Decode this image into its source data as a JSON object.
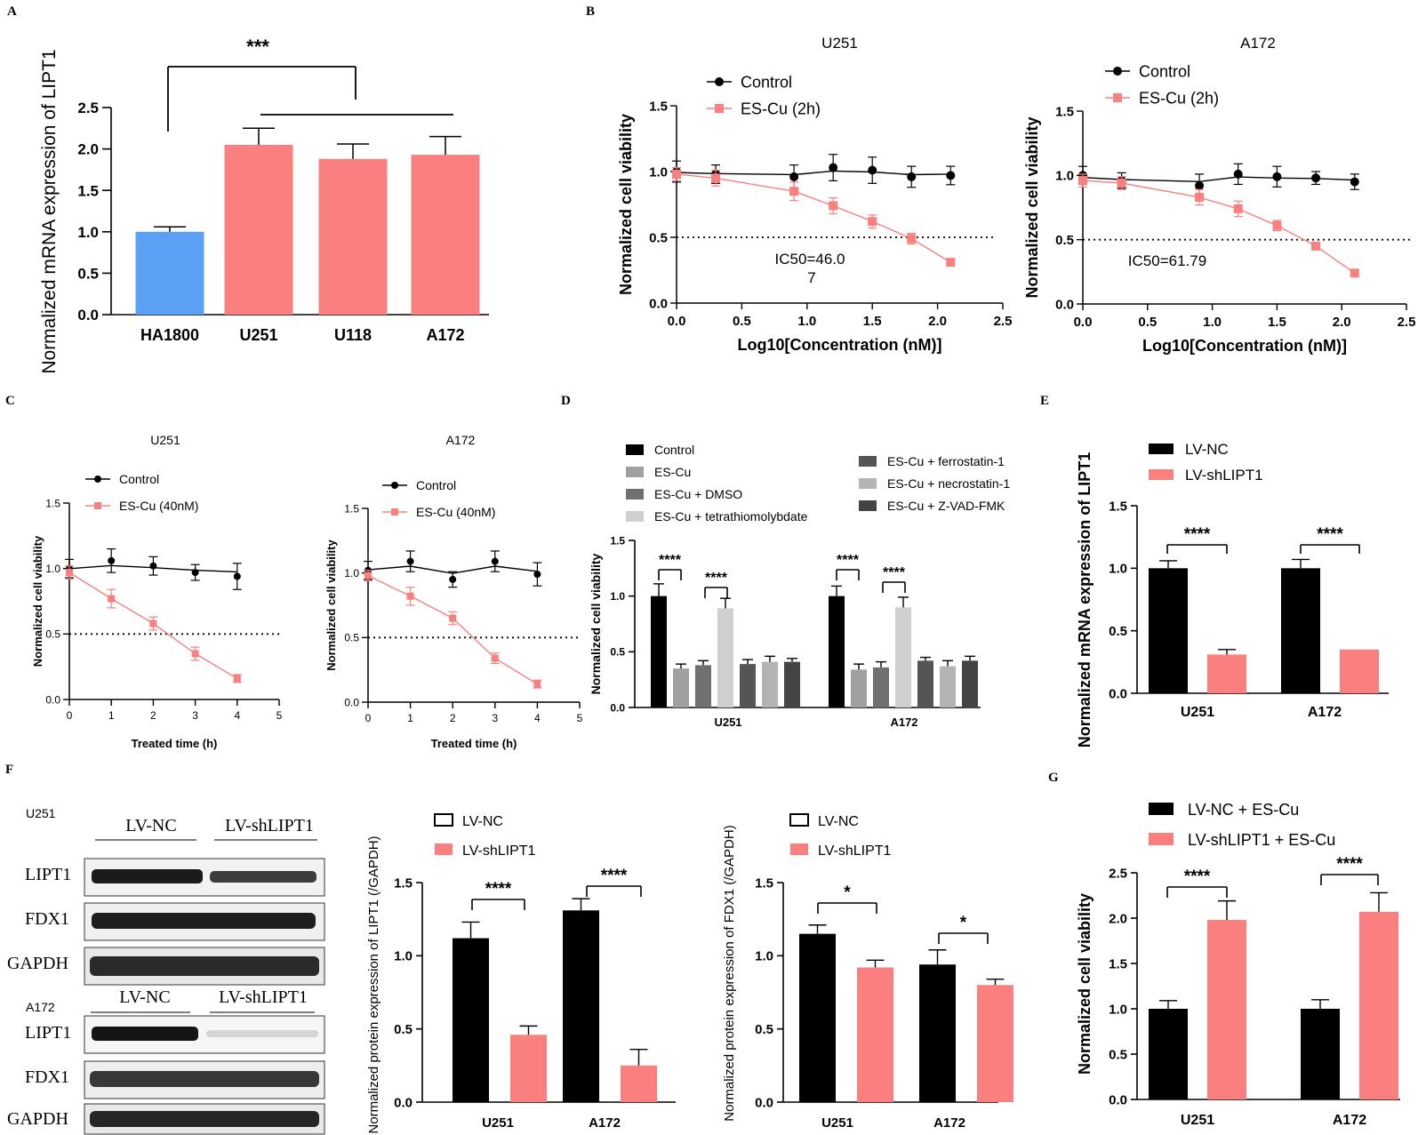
{
  "colors": {
    "blue": "#5aa0f5",
    "pink": "#fa8080",
    "black": "#000000",
    "gray1": "#a0a0a0",
    "gray2": "#707070",
    "lightgray": "#cfcfcf",
    "darkgray": "#555555",
    "midgray": "#b4b4b4",
    "dark2": "#444444"
  },
  "panel_labels": [
    "A",
    "B",
    "C",
    "D",
    "E",
    "F",
    "G"
  ],
  "panel_f_blots": {
    "u251": {
      "cell_line": "U251",
      "group_nc": "LV-NC",
      "group_sh": "LV-shLIPT1",
      "rows": [
        "LIPT1",
        "FDX1",
        "GAPDH"
      ]
    },
    "a172": {
      "cell_line": "A172",
      "group_nc": "LV-NC",
      "group_sh": "LV-shLIPT1",
      "rows": [
        "LIPT1",
        "FDX1",
        "GAPDH"
      ]
    }
  },
  "chart_data": [
    {
      "id": "A",
      "type": "bar",
      "title": "",
      "xlabel": "",
      "ylabel": "Normalized mRNA expression of LIPT1",
      "categories": [
        "HA1800",
        "U251",
        "U118",
        "A172"
      ],
      "values": [
        1.0,
        2.05,
        1.88,
        1.93
      ],
      "errors": [
        0.06,
        0.2,
        0.18,
        0.22
      ],
      "bar_colors": [
        "#5aa0f5",
        "#fa8080",
        "#fa8080",
        "#fa8080"
      ],
      "ylim": [
        0,
        2.5
      ],
      "yticks": [
        "0.0",
        "0.5",
        "1.0",
        "1.5",
        "2.0",
        "2.5"
      ],
      "significance": "***"
    },
    {
      "id": "B1",
      "type": "line",
      "title": "U251",
      "xlabel": "Log10[Concentration (nM)]",
      "ylabel": "Normalized cell viability",
      "xlim": [
        0,
        2.5
      ],
      "ylim": [
        0,
        1.5
      ],
      "xticks": [
        "0.0",
        "0.5",
        "1.0",
        "1.5",
        "2.0",
        "2.5"
      ],
      "yticks": [
        "0.0",
        "0.5",
        "1.0",
        "1.5"
      ],
      "series": [
        {
          "name": "Control",
          "x": [
            0,
            0.3,
            0.9,
            1.2,
            1.5,
            1.8,
            2.1
          ],
          "values": [
            1.0,
            0.98,
            0.96,
            1.03,
            1.01,
            0.96,
            0.97
          ],
          "errors": [
            0.08,
            0.07,
            0.09,
            0.1,
            0.1,
            0.08,
            0.07
          ]
        },
        {
          "name": "ES-Cu (2h)",
          "x": [
            0,
            0.3,
            0.9,
            1.2,
            1.5,
            1.8,
            2.1
          ],
          "values": [
            0.98,
            0.95,
            0.85,
            0.74,
            0.62,
            0.49,
            0.31
          ],
          "errors": [
            0.05,
            0.06,
            0.07,
            0.06,
            0.05,
            0.04,
            0.02
          ]
        }
      ],
      "threshold": 0.5,
      "annotation": "IC50=46.0\n7"
    },
    {
      "id": "B2",
      "type": "line",
      "title": "A172",
      "xlabel": "Log10[Concentration (nM)]",
      "ylabel": "Normalized cell viability",
      "xlim": [
        0,
        2.5
      ],
      "ylim": [
        0,
        1.5
      ],
      "xticks": [
        "0.0",
        "0.5",
        "1.0",
        "1.5",
        "2.0",
        "2.5"
      ],
      "yticks": [
        "0.0",
        "0.5",
        "1.0",
        "1.5"
      ],
      "series": [
        {
          "name": "Control",
          "x": [
            0,
            0.3,
            0.9,
            1.2,
            1.5,
            1.8,
            2.1
          ],
          "values": [
            1.0,
            0.96,
            0.92,
            1.01,
            0.99,
            0.98,
            0.95
          ],
          "errors": [
            0.07,
            0.06,
            0.09,
            0.08,
            0.08,
            0.05,
            0.06
          ]
        },
        {
          "name": "ES-Cu (2h)",
          "x": [
            0,
            0.3,
            0.9,
            1.2,
            1.5,
            1.8,
            2.1
          ],
          "values": [
            0.96,
            0.94,
            0.83,
            0.74,
            0.61,
            0.45,
            0.24
          ],
          "errors": [
            0.05,
            0.05,
            0.06,
            0.06,
            0.04,
            0.03,
            0.02
          ]
        }
      ],
      "threshold": 0.5,
      "annotation": "IC50=61.79"
    },
    {
      "id": "C1",
      "type": "line",
      "title": "U251",
      "xlabel": "Treated time (h)",
      "ylabel": "Normalized cell viability",
      "xlim": [
        0,
        5
      ],
      "ylim": [
        0,
        1.5
      ],
      "xticks": [
        "0",
        "1",
        "2",
        "3",
        "4",
        "5"
      ],
      "yticks": [
        "0.0",
        "0.5",
        "1.0",
        "1.5"
      ],
      "series": [
        {
          "name": "Control",
          "x": [
            0,
            1,
            2,
            3,
            4
          ],
          "values": [
            1.0,
            1.06,
            1.02,
            0.97,
            0.94
          ],
          "errors": [
            0.07,
            0.09,
            0.07,
            0.06,
            0.1
          ]
        },
        {
          "name": "ES-Cu (40nM)",
          "x": [
            0,
            1,
            2,
            3,
            4
          ],
          "values": [
            0.97,
            0.77,
            0.58,
            0.35,
            0.16
          ],
          "errors": [
            0.05,
            0.07,
            0.05,
            0.05,
            0.03
          ]
        }
      ],
      "threshold": 0.5
    },
    {
      "id": "C2",
      "type": "line",
      "title": "A172",
      "xlabel": "Treated time (h)",
      "ylabel": "Normalized cell viability",
      "xlim": [
        0,
        5
      ],
      "ylim": [
        0,
        1.5
      ],
      "xticks": [
        "0",
        "1",
        "2",
        "3",
        "4",
        "5"
      ],
      "yticks": [
        "0.0",
        "0.5",
        "1.0",
        "1.5"
      ],
      "series": [
        {
          "name": "Control",
          "x": [
            0,
            1,
            2,
            3,
            4
          ],
          "values": [
            1.02,
            1.09,
            0.95,
            1.09,
            0.99
          ],
          "errors": [
            0.07,
            0.08,
            0.06,
            0.08,
            0.09
          ]
        },
        {
          "name": "ES-Cu (40nM)",
          "x": [
            0,
            1,
            2,
            3,
            4
          ],
          "values": [
            0.98,
            0.82,
            0.65,
            0.34,
            0.14
          ],
          "errors": [
            0.04,
            0.07,
            0.05,
            0.04,
            0.03
          ]
        }
      ],
      "threshold": 0.5
    },
    {
      "id": "D",
      "type": "bar",
      "title": "",
      "xlabel": "",
      "ylabel": "Normalized cell viability",
      "categories": [
        "U251",
        "A172"
      ],
      "ylim": [
        0,
        1.5
      ],
      "yticks": [
        "0.0",
        "0.5",
        "1.0",
        "1.5"
      ],
      "legend_left": [
        "Control",
        "ES-Cu",
        "ES-Cu + DMSO",
        "ES-Cu + tetrathiomolybdate"
      ],
      "legend_right": [
        "ES-Cu + ferrostatin-1",
        "ES-Cu + necrostatin-1",
        "ES-Cu + Z-VAD-FMK"
      ],
      "series": [
        {
          "name": "Control",
          "color": "#000000",
          "values": [
            1.0,
            1.0
          ],
          "errors": [
            0.11,
            0.09
          ]
        },
        {
          "name": "ES-Cu",
          "color": "#a0a0a0",
          "values": [
            0.35,
            0.34
          ],
          "errors": [
            0.04,
            0.05
          ]
        },
        {
          "name": "ES-Cu + DMSO",
          "color": "#707070",
          "values": [
            0.38,
            0.36
          ],
          "errors": [
            0.04,
            0.05
          ]
        },
        {
          "name": "ES-Cu + tetrathiomolybdate",
          "color": "#cfcfcf",
          "values": [
            0.89,
            0.9
          ],
          "errors": [
            0.09,
            0.09
          ]
        },
        {
          "name": "ES-Cu + ferrostatin-1",
          "color": "#555555",
          "values": [
            0.39,
            0.42
          ],
          "errors": [
            0.04,
            0.03
          ]
        },
        {
          "name": "ES-Cu + necrostatin-1",
          "color": "#b4b4b4",
          "values": [
            0.41,
            0.37
          ],
          "errors": [
            0.05,
            0.05
          ]
        },
        {
          "name": "ES-Cu + Z-VAD-FMK",
          "color": "#444444",
          "values": [
            0.41,
            0.42
          ],
          "errors": [
            0.03,
            0.04
          ]
        }
      ],
      "significance": [
        "****",
        "****",
        "****",
        "****"
      ]
    },
    {
      "id": "E",
      "type": "bar",
      "title": "",
      "xlabel": "",
      "ylabel": "Normalized mRNA expression of LIPT1",
      "categories": [
        "U251",
        "A172"
      ],
      "ylim": [
        0,
        1.5
      ],
      "yticks": [
        "0.0",
        "0.5",
        "1.0",
        "1.5"
      ],
      "series": [
        {
          "name": "LV-NC",
          "color": "#000000",
          "values": [
            1.0,
            1.0
          ],
          "errors": [
            0.06,
            0.07
          ]
        },
        {
          "name": "LV-shLIPT1",
          "color": "#fa8080",
          "values": [
            0.31,
            0.35
          ],
          "errors": [
            0.04,
            0.0
          ]
        }
      ],
      "significance": [
        "****",
        "****"
      ]
    },
    {
      "id": "F1",
      "type": "bar",
      "title": "",
      "xlabel": "",
      "ylabel": "Normalized protein expression of LIPT1 (/GAPDH)",
      "categories": [
        "U251",
        "A172"
      ],
      "ylim": [
        0,
        1.5
      ],
      "yticks": [
        "0.0",
        "0.5",
        "1.0",
        "1.5"
      ],
      "series": [
        {
          "name": "LV-NC",
          "color": "#000000",
          "values": [
            1.12,
            1.31
          ],
          "errors": [
            0.11,
            0.08
          ]
        },
        {
          "name": "LV-shLIPT1",
          "color": "#fa8080",
          "values": [
            0.46,
            0.25
          ],
          "errors": [
            0.06,
            0.11
          ]
        }
      ],
      "significance": [
        "****",
        "****"
      ]
    },
    {
      "id": "F2",
      "type": "bar",
      "title": "",
      "xlabel": "",
      "ylabel": "Normalized protein expression of FDX1 (/GAPDH)",
      "categories": [
        "U251",
        "A172"
      ],
      "ylim": [
        0,
        1.5
      ],
      "yticks": [
        "0.0",
        "0.5",
        "1.0",
        "1.5"
      ],
      "series": [
        {
          "name": "LV-NC",
          "color": "#000000",
          "values": [
            1.15,
            0.94
          ],
          "errors": [
            0.06,
            0.1
          ]
        },
        {
          "name": "LV-shLIPT1",
          "color": "#fa8080",
          "values": [
            0.92,
            0.8
          ],
          "errors": [
            0.05,
            0.04
          ]
        }
      ],
      "significance": [
        "*",
        "*"
      ]
    },
    {
      "id": "G",
      "type": "bar",
      "title": "",
      "xlabel": "",
      "ylabel": "Normalized cell viability",
      "categories": [
        "U251",
        "A172"
      ],
      "ylim": [
        0,
        2.5
      ],
      "yticks": [
        "0.0",
        "0.5",
        "1.0",
        "1.5",
        "2.0",
        "2.5"
      ],
      "series": [
        {
          "name": "LV-NC + ES-Cu",
          "color": "#000000",
          "values": [
            1.0,
            1.0
          ],
          "errors": [
            0.09,
            0.1
          ]
        },
        {
          "name": "LV-shLIPT1 + ES-Cu",
          "color": "#fa8080",
          "values": [
            1.98,
            2.07
          ],
          "errors": [
            0.21,
            0.21
          ]
        }
      ],
      "significance": [
        "****",
        "****"
      ]
    }
  ]
}
